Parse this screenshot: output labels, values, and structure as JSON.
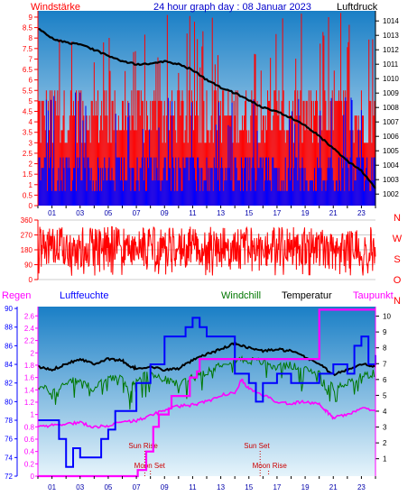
{
  "colors": {
    "panel_bg_top": "#1a7fc6",
    "panel_bg_bottom": "#e6f4fb",
    "wind_red": "#ff0000",
    "wind_blue": "#0000ff",
    "pressure": "#000000",
    "winddir": "#ff0000",
    "regen": "#ff00ff",
    "feuchte": "#0000ff",
    "windchill": "#007700",
    "temperatur": "#000000",
    "taupunkt": "#ff00ff",
    "axis_wind": "#ff0000",
    "axis_pressure": "#000000",
    "axis_dir": "#ff0000",
    "axis_hum": "#0000ff",
    "astro": "#cc0000"
  },
  "chart_data": [
    {
      "type": "bar",
      "title": "24 hour graph day : 08 Januar 2023",
      "ylabel_left": "Windstärke",
      "ylabel_right": "Luftdruck",
      "y_left_ticks": [
        "0",
        "0.5",
        "1",
        "1.5",
        "2",
        "2.5",
        "3",
        "3.5",
        "4",
        "4.5",
        "5",
        "5.5",
        "6",
        "6.5",
        "7",
        "7.5",
        "8",
        "8.5",
        "9"
      ],
      "y_left_range": [
        0,
        9.3
      ],
      "y_right_ticks": [
        "1002",
        "1003",
        "1004",
        "1005",
        "1006",
        "1007",
        "1008",
        "1009",
        "1010",
        "1011",
        "1012",
        "1013",
        "1014"
      ],
      "y_right_range": [
        1001.2,
        1014.7
      ],
      "x_ticks": [
        "01",
        "03",
        "05",
        "07",
        "09",
        "11",
        "13",
        "15",
        "17",
        "19",
        "21",
        "23"
      ],
      "x_range": [
        0,
        24
      ],
      "series": [
        {
          "values_gust_mean": [
            4.2,
            4.5,
            4.3,
            4.6,
            4.5,
            4.0,
            4.4,
            4.7,
            4.3,
            4.1,
            4.2,
            4.8,
            4.4,
            4.0,
            4.3,
            4.5,
            4.3,
            4.4,
            4.6,
            4.2,
            4.0,
            4.3,
            4.6,
            4.5
          ]
        },
        {
          "values_speed_mean": [
            1.5,
            1.6,
            1.4,
            1.7,
            1.5,
            1.3,
            1.6,
            1.8,
            1.5,
            1.4,
            1.5,
            1.6,
            1.5,
            1.3,
            1.6,
            1.7,
            1.4,
            1.5,
            1.6,
            1.4,
            1.3,
            1.5,
            1.7,
            1.6
          ]
        },
        {
          "pressure": [
            [
              0,
              1013.5
            ],
            [
              1,
              1012.8
            ],
            [
              2,
              1012.5
            ],
            [
              3,
              1012.4
            ],
            [
              4,
              1012.0
            ],
            [
              5,
              1011.6
            ],
            [
              6,
              1011.2
            ],
            [
              7,
              1011.0
            ],
            [
              8,
              1011.0
            ],
            [
              9,
              1011.2
            ],
            [
              10,
              1011.0
            ],
            [
              11,
              1010.6
            ],
            [
              12,
              1009.9
            ],
            [
              13,
              1009.4
            ],
            [
              14,
              1009.0
            ],
            [
              15,
              1008.5
            ],
            [
              16,
              1008.0
            ],
            [
              17,
              1007.7
            ],
            [
              18,
              1007.3
            ],
            [
              19,
              1006.8
            ],
            [
              20,
              1006.0
            ],
            [
              21,
              1005.2
            ],
            [
              22,
              1004.3
            ],
            [
              23,
              1003.6
            ],
            [
              24,
              1002.4
            ]
          ]
        }
      ]
    },
    {
      "type": "line",
      "ylabel_right_letters": [
        "N",
        "W",
        "S",
        "O",
        "N"
      ],
      "y_ticks": [
        "0",
        "90",
        "180",
        "270",
        "360"
      ],
      "y_range": [
        0,
        360
      ],
      "x_range": [
        0,
        24
      ],
      "series": [
        {
          "mean_direction_deg": 200
        }
      ]
    },
    {
      "type": "line",
      "legend": [
        "Regen",
        "Luftfeuchte",
        "Windchill",
        "Temperatur",
        "Taupunkt"
      ],
      "y_left_ticks": [
        "72",
        "74",
        "76",
        "78",
        "80",
        "82",
        "84",
        "86",
        "88",
        "90"
      ],
      "y_left_range": [
        72,
        90.2
      ],
      "y_left_inner_ticks": [
        "0",
        "0.2",
        "0.4",
        "0.6",
        "0.8",
        "1",
        "1.2",
        "1.4",
        "1.6",
        "1.8",
        "2",
        "2.2",
        "2.4",
        "2.6"
      ],
      "y_left_inner_range": [
        0,
        2.75
      ],
      "y_right_ticks": [
        "1",
        "2",
        "3",
        "4",
        "5",
        "6",
        "7",
        "8",
        "9",
        "10"
      ],
      "y_right_range": [
        -0.1,
        10.6
      ],
      "x_ticks": [
        "01",
        "03",
        "05",
        "07",
        "09",
        "11",
        "13",
        "15",
        "17",
        "19",
        "21",
        "23"
      ],
      "x_range": [
        0,
        24
      ],
      "annotations": [
        {
          "text": "Sun Rise",
          "x": 7.6
        },
        {
          "text": "Moon Set",
          "x": 8.0
        },
        {
          "text": "Sun Set",
          "x": 15.8
        },
        {
          "text": "Moon Rise",
          "x": 16.4
        }
      ],
      "series": [
        {
          "name": "Regen",
          "points": [
            [
              0,
              0
            ],
            [
              7,
              0
            ],
            [
              7.1,
              0.1
            ],
            [
              7.7,
              0.4
            ],
            [
              8.2,
              0.8
            ],
            [
              8.6,
              1.0
            ],
            [
              9.3,
              1.1
            ],
            [
              9.5,
              1.3
            ],
            [
              10.0,
              1.3
            ],
            [
              10.5,
              1.3
            ],
            [
              10.8,
              1.6
            ],
            [
              11.3,
              1.7
            ],
            [
              11.5,
              1.9
            ],
            [
              14.0,
              1.9
            ],
            [
              15.0,
              1.9
            ],
            [
              20.0,
              1.9
            ],
            [
              20.0,
              2.7
            ],
            [
              24,
              2.7
            ]
          ]
        },
        {
          "name": "Luftfeuchte",
          "points": [
            [
              0,
              78
            ],
            [
              1,
              78
            ],
            [
              1.5,
              76
            ],
            [
              2,
              73
            ],
            [
              2.5,
              75
            ],
            [
              3,
              74
            ],
            [
              4,
              74
            ],
            [
              4.5,
              76
            ],
            [
              5,
              77
            ],
            [
              5.5,
              79
            ],
            [
              6,
              79
            ],
            [
              7,
              82
            ],
            [
              8,
              84
            ],
            [
              9,
              87
            ],
            [
              10,
              87
            ],
            [
              10.5,
              88
            ],
            [
              11,
              89
            ],
            [
              11.5,
              88
            ],
            [
              12,
              87
            ],
            [
              13,
              87
            ],
            [
              14,
              83
            ],
            [
              15,
              82
            ],
            [
              15.5,
              80
            ],
            [
              16,
              82
            ],
            [
              17,
              83
            ],
            [
              18,
              82
            ],
            [
              19,
              82
            ],
            [
              20,
              83
            ],
            [
              21,
              84
            ],
            [
              22,
              83
            ],
            [
              22.5,
              86
            ],
            [
              23,
              87
            ],
            [
              23.5,
              84
            ],
            [
              24,
              85
            ]
          ]
        },
        {
          "name": "Windchill",
          "points": [
            [
              0,
              5.6
            ],
            [
              1,
              5.2
            ],
            [
              2,
              5.8
            ],
            [
              3,
              6.0
            ],
            [
              4,
              5.4
            ],
            [
              5,
              6.2
            ],
            [
              6,
              6.0
            ],
            [
              6.5,
              5.2
            ],
            [
              7,
              6.1
            ],
            [
              8,
              6.3
            ],
            [
              9,
              6.0
            ],
            [
              10,
              5.7
            ],
            [
              11,
              6.2
            ],
            [
              12,
              6.5
            ],
            [
              13,
              7.0
            ],
            [
              14,
              7.3
            ],
            [
              15,
              7.2
            ],
            [
              16,
              7.1
            ],
            [
              17,
              6.8
            ],
            [
              18,
              6.9
            ],
            [
              19,
              6.6
            ],
            [
              20,
              6.4
            ],
            [
              21,
              5.6
            ],
            [
              22,
              5.8
            ],
            [
              23,
              6.2
            ],
            [
              24,
              6.4
            ]
          ]
        },
        {
          "name": "Temperatur",
          "points": [
            [
              0,
              6.8
            ],
            [
              1,
              6.6
            ],
            [
              2,
              7.0
            ],
            [
              3,
              7.3
            ],
            [
              4,
              7.0
            ],
            [
              5,
              7.3
            ],
            [
              6,
              7.2
            ],
            [
              6.5,
              6.8
            ],
            [
              7,
              6.7
            ],
            [
              8,
              6.8
            ],
            [
              9,
              6.6
            ],
            [
              10,
              6.7
            ],
            [
              11,
              7.2
            ],
            [
              12,
              7.6
            ],
            [
              13,
              7.9
            ],
            [
              14,
              8.3
            ],
            [
              15,
              8.0
            ],
            [
              16,
              7.8
            ],
            [
              17,
              7.9
            ],
            [
              18,
              7.8
            ],
            [
              19,
              7.4
            ],
            [
              20,
              7.0
            ],
            [
              21,
              6.3
            ],
            [
              22,
              6.6
            ],
            [
              23,
              7.0
            ],
            [
              24,
              6.8
            ]
          ]
        },
        {
          "name": "Taupunkt",
          "points": [
            [
              0,
              3.0
            ],
            [
              1,
              3.1
            ],
            [
              2,
              3.2
            ],
            [
              3,
              3.3
            ],
            [
              4,
              3.0
            ],
            [
              5,
              3.1
            ],
            [
              6,
              3.3
            ],
            [
              7,
              3.4
            ],
            [
              8,
              3.7
            ],
            [
              9,
              4.1
            ],
            [
              10,
              4.3
            ],
            [
              11,
              4.4
            ],
            [
              12,
              4.6
            ],
            [
              13,
              5.0
            ],
            [
              14,
              5.2
            ],
            [
              14.5,
              6.0
            ],
            [
              15,
              5.4
            ],
            [
              16,
              5.0
            ],
            [
              17,
              4.6
            ],
            [
              18,
              4.5
            ],
            [
              19,
              4.6
            ],
            [
              20,
              4.4
            ],
            [
              20.5,
              4.0
            ],
            [
              21,
              3.6
            ],
            [
              22,
              3.8
            ],
            [
              23,
              4.2
            ],
            [
              24,
              4.0
            ]
          ]
        }
      ]
    }
  ]
}
